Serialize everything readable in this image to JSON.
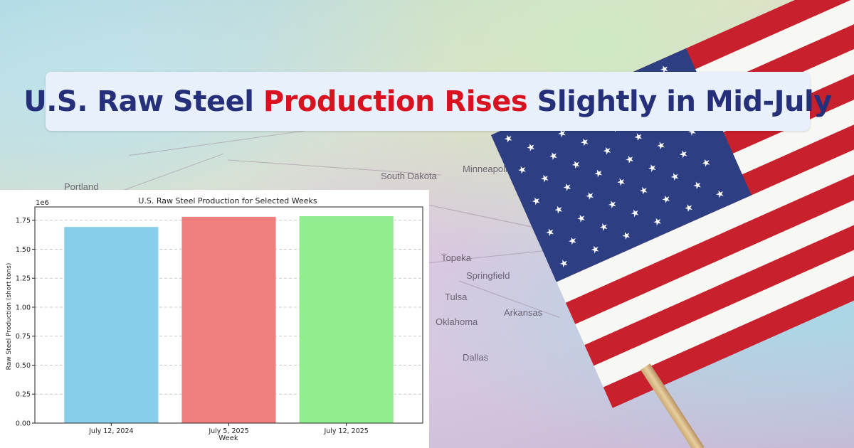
{
  "headline": {
    "part1": "U.S. Raw Steel ",
    "highlight": "Production Rises",
    "part2": " Slightly in Mid-July",
    "text_color": "#26307a",
    "highlight_color": "#d8121f"
  },
  "map_labels": [
    "Portland",
    "South Dakota",
    "Minneapolis",
    "Topeka",
    "Tulsa",
    "Oklahoma",
    "Springfield",
    "Arkansas",
    "Dallas"
  ],
  "chart_data": {
    "type": "bar",
    "title": "U.S. Raw Steel Production for Selected Weeks",
    "xlabel": "Week",
    "ylabel": "Raw Steel Production (short tons)",
    "y_offset_label": "1e6",
    "categories": [
      "July 12, 2024",
      "July 5, 2025",
      "July 12, 2025"
    ],
    "values": [
      1.692,
      1.78,
      1.785
    ],
    "colors": [
      "#87ceeb",
      "#f08080",
      "#90ee90"
    ],
    "ylim": [
      0,
      1.865
    ],
    "yticks": [
      "0.00",
      "0.25",
      "0.50",
      "0.75",
      "1.00",
      "1.25",
      "1.50",
      "1.75"
    ],
    "grid": true
  }
}
